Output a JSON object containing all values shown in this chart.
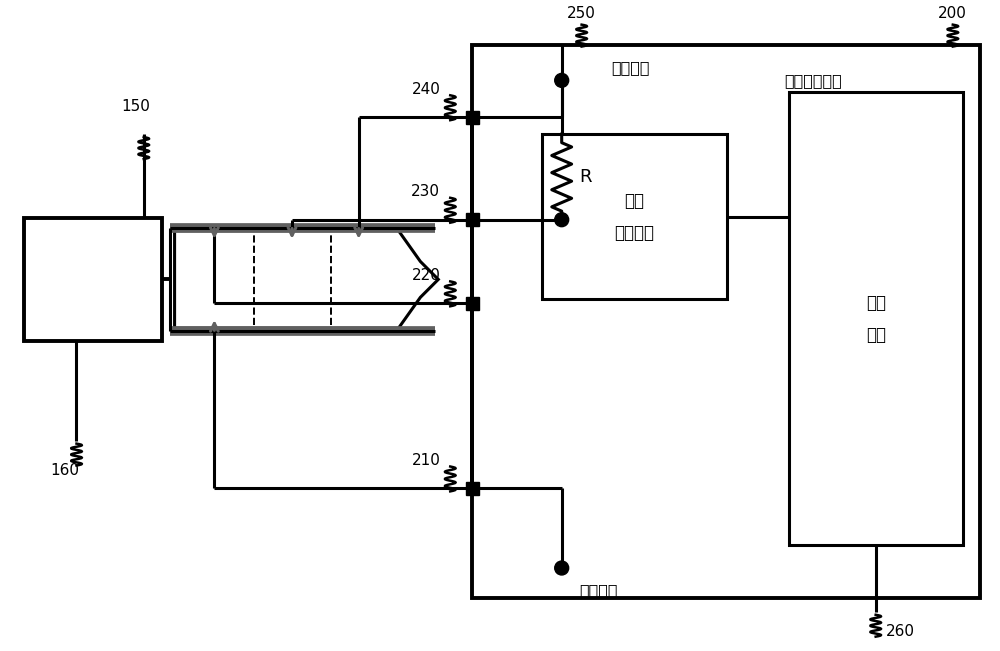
{
  "bg_color": "#ffffff",
  "line_color": "#000000",
  "gray_color": "#606060",
  "label_150": "150",
  "label_160": "160",
  "label_200": "200",
  "label_210": "210",
  "label_220": "220",
  "label_230": "230",
  "label_240": "240",
  "label_250": "250",
  "label_260": "260",
  "text_codec": "音频编解码器",
  "text_detect": "插头\n检测电路",
  "text_control": "控制\n电路",
  "text_second": "第二电位",
  "text_first": "第一电位",
  "text_R": "R"
}
